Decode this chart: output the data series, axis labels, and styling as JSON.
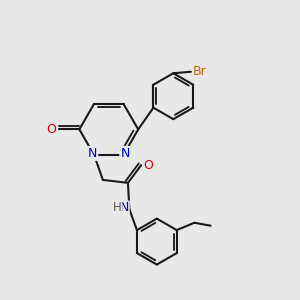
{
  "bg_color": "#e8e8e8",
  "bond_color": "#1a1a1a",
  "bond_width": 1.5,
  "atom_colors": {
    "N": "#0000cc",
    "O": "#dd0000",
    "Br": "#cc6600",
    "H": "#555555",
    "C": "#1a1a1a"
  },
  "font_size": 9,
  "font_size_small": 8.5
}
